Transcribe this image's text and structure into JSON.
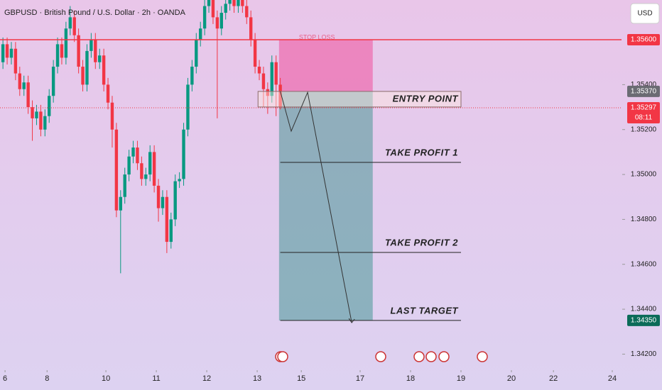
{
  "chart_data": {
    "type": "candlestick",
    "title": "GBPUSD · British Pound / U.S. Dollar · 2h · OANDA",
    "currency": "USD",
    "up_color": "#089981",
    "down_color": "#f23645",
    "open": [
      1.355,
      1.3558,
      1.3552,
      1.3556,
      1.3545,
      1.3538,
      1.3541,
      1.353,
      1.3525,
      1.3528,
      1.352,
      1.3526,
      1.3535,
      1.3548,
      1.3558,
      1.3552,
      1.3565,
      1.357,
      1.3562,
      1.3548,
      1.354,
      1.3555,
      1.356,
      1.355,
      1.3553,
      1.354,
      1.3532,
      1.352,
      1.3484,
      1.349,
      1.35,
      1.3508,
      1.3512,
      1.3505,
      1.3498,
      1.35,
      1.351,
      1.3495,
      1.3485,
      1.349,
      1.347,
      1.348,
      1.3497,
      1.3498,
      1.352,
      1.354,
      1.3548,
      1.356,
      1.3565,
      1.3575,
      1.3578,
      1.357,
      1.3565,
      1.3572,
      1.3576,
      1.3578,
      1.3575,
      1.3578,
      1.3575,
      1.357,
      1.356,
      1.3548,
      1.3545,
      1.3538,
      1.3535,
      1.355,
      1.354
    ],
    "high": [
      1.3561,
      1.3561,
      1.3559,
      1.3559,
      1.3548,
      1.3544,
      1.3544,
      1.3533,
      1.3531,
      1.3531,
      1.3529,
      1.3538,
      1.3551,
      1.3561,
      1.3561,
      1.3568,
      1.3575,
      1.3573,
      1.3565,
      1.3551,
      1.3558,
      1.3563,
      1.3563,
      1.3556,
      1.3556,
      1.3543,
      1.3535,
      1.3523,
      1.3493,
      1.3503,
      1.3511,
      1.3515,
      1.3515,
      1.3508,
      1.3503,
      1.3513,
      1.3513,
      1.3498,
      1.3493,
      1.3493,
      1.3483,
      1.35,
      1.3501,
      1.3523,
      1.3543,
      1.3551,
      1.3563,
      1.3568,
      1.3578,
      1.3581,
      1.3581,
      1.3573,
      1.3575,
      1.3579,
      1.3581,
      1.3581,
      1.3581,
      1.3581,
      1.3578,
      1.3573,
      1.3563,
      1.3551,
      1.3548,
      1.3541,
      1.3553,
      1.3553,
      1.3543
    ],
    "low": [
      1.3547,
      1.3549,
      1.3549,
      1.3542,
      1.3535,
      1.3535,
      1.3527,
      1.3515,
      1.3522,
      1.3517,
      1.3517,
      1.3523,
      1.3532,
      1.3545,
      1.3549,
      1.3549,
      1.3562,
      1.3559,
      1.3545,
      1.3537,
      1.3537,
      1.3552,
      1.3547,
      1.3547,
      1.3537,
      1.3529,
      1.3512,
      1.3481,
      1.3456,
      1.3487,
      1.3497,
      1.3505,
      1.3502,
      1.3495,
      1.3495,
      1.3497,
      1.3492,
      1.3479,
      1.3482,
      1.3465,
      1.3467,
      1.3477,
      1.3494,
      1.3495,
      1.3517,
      1.3537,
      1.3545,
      1.3557,
      1.3562,
      1.3572,
      1.3567,
      1.3525,
      1.3562,
      1.3569,
      1.3573,
      1.3572,
      1.3572,
      1.3572,
      1.3567,
      1.3557,
      1.3545,
      1.3542,
      1.353,
      1.3527,
      1.3532,
      1.3526,
      1.3529
    ],
    "close": [
      1.3558,
      1.3552,
      1.3556,
      1.3545,
      1.3538,
      1.3541,
      1.353,
      1.3525,
      1.3528,
      1.352,
      1.3526,
      1.3535,
      1.3548,
      1.3558,
      1.3552,
      1.3565,
      1.357,
      1.3562,
      1.3548,
      1.354,
      1.3555,
      1.356,
      1.355,
      1.3553,
      1.354,
      1.3532,
      1.352,
      1.3484,
      1.349,
      1.35,
      1.3508,
      1.3512,
      1.3505,
      1.3498,
      1.35,
      1.351,
      1.3495,
      1.3485,
      1.349,
      1.347,
      1.348,
      1.3497,
      1.3498,
      1.352,
      1.354,
      1.3548,
      1.356,
      1.3565,
      1.3575,
      1.3578,
      1.357,
      1.3565,
      1.3572,
      1.3576,
      1.3578,
      1.3575,
      1.3578,
      1.3575,
      1.357,
      1.356,
      1.3548,
      1.3545,
      1.3538,
      1.3535,
      1.355,
      1.354,
      1.353
    ],
    "ylim": [
      1.34135,
      1.35777
    ],
    "yticks": [
      {
        "value": 1.342,
        "label": "1.34200"
      },
      {
        "value": 1.344,
        "label": "1.34400"
      },
      {
        "value": 1.346,
        "label": "1.34600"
      },
      {
        "value": 1.348,
        "label": "1.34800"
      },
      {
        "value": 1.35,
        "label": "1.35000"
      },
      {
        "value": 1.352,
        "label": "1.35200"
      },
      {
        "value": 1.354,
        "label": "1.35400"
      }
    ],
    "xlim": [
      -0.7,
      147.2
    ],
    "xticks": [
      {
        "value": 0.5,
        "label": "6"
      },
      {
        "value": 10.5,
        "label": "8"
      },
      {
        "value": 24.5,
        "label": "10"
      },
      {
        "value": 36.5,
        "label": "11"
      },
      {
        "value": 48.5,
        "label": "12"
      },
      {
        "value": 60.5,
        "label": "13"
      },
      {
        "value": 71,
        "label": "15"
      },
      {
        "value": 85,
        "label": "17"
      },
      {
        "value": 97,
        "label": "18"
      },
      {
        "value": 109,
        "label": "19"
      },
      {
        "value": 121,
        "label": "20"
      },
      {
        "value": 131,
        "label": "22"
      },
      {
        "value": 145,
        "label": "24"
      }
    ],
    "position": {
      "x": [
        65.7,
        88
      ],
      "stop_loss": 1.356,
      "entry": 1.3537,
      "target": 1.3435,
      "stop_label": "STOP LOSS"
    },
    "levels": [
      {
        "label": "ENTRY POINT",
        "value": 1.3537
      },
      {
        "label": "TAKE PROFIT 1",
        "value": 1.35054
      },
      {
        "label": "TAKE PROFIT 2",
        "value": 1.34653
      },
      {
        "label": "LAST TARGET",
        "value": 1.3435
      }
    ],
    "levels_x": [
      66,
      109
    ],
    "entry_box_x": [
      60.7,
      109
    ],
    "projection": {
      "x": [
        66,
        68.6,
        72.5,
        83
      ],
      "y": [
        1.3537,
        1.35193,
        1.35366,
        1.3434
      ]
    },
    "stop_line": 1.356,
    "current_price": 1.35297,
    "price_labels": [
      {
        "value": 1.356,
        "label": "1.35600",
        "color": "#f23645"
      },
      {
        "value": 1.3537,
        "label": "1.35370",
        "color": "#6b6b73"
      },
      {
        "value": 1.35297,
        "label": "1.35297",
        "color": "#f23645",
        "sub": "08:11"
      },
      {
        "value": 1.3435,
        "label": "1.34350",
        "color": "#0b6b58"
      }
    ]
  }
}
